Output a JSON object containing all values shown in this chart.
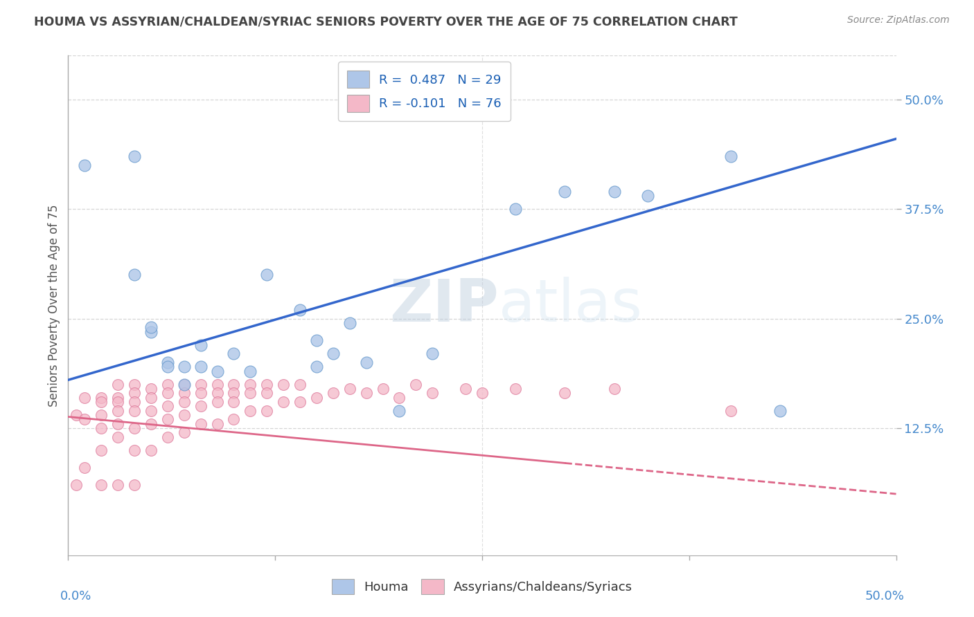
{
  "title": "HOUMA VS ASSYRIAN/CHALDEAN/SYRIAC SENIORS POVERTY OVER THE AGE OF 75 CORRELATION CHART",
  "source": "Source: ZipAtlas.com",
  "ylabel": "Seniors Poverty Over the Age of 75",
  "ytick_labels": [
    "12.5%",
    "25.0%",
    "37.5%",
    "50.0%"
  ],
  "ytick_values": [
    0.125,
    0.25,
    0.375,
    0.5
  ],
  "xlim": [
    0.0,
    0.5
  ],
  "ylim": [
    -0.02,
    0.55
  ],
  "houma_color": "#aec6e8",
  "houma_edge": "#6699cc",
  "assyrian_color": "#f4b8c8",
  "assyrian_edge": "#dd7799",
  "trend_houma_color": "#3366cc",
  "trend_assyrian_color": "#dd6688",
  "R_houma": 0.487,
  "N_houma": 29,
  "R_assyrian": -0.101,
  "N_assyrian": 76,
  "watermark_zip": "ZIP",
  "watermark_atlas": "atlas",
  "legend_label_houma": "Houma",
  "legend_label_assyrian": "Assyrians/Chaldeans/Syriacs",
  "houma_trend_x0": 0.0,
  "houma_trend_y0": 0.18,
  "houma_trend_x1": 0.5,
  "houma_trend_y1": 0.455,
  "assyrian_trend_x0": 0.0,
  "assyrian_trend_y0": 0.138,
  "assyrian_trend_x1": 0.5,
  "assyrian_trend_y1": 0.05,
  "houma_points_x": [
    0.01,
    0.04,
    0.04,
    0.05,
    0.05,
    0.06,
    0.06,
    0.07,
    0.07,
    0.08,
    0.08,
    0.09,
    0.1,
    0.11,
    0.12,
    0.14,
    0.15,
    0.15,
    0.16,
    0.17,
    0.18,
    0.2,
    0.22,
    0.27,
    0.3,
    0.33,
    0.35,
    0.4,
    0.43
  ],
  "houma_points_y": [
    0.425,
    0.435,
    0.3,
    0.235,
    0.24,
    0.2,
    0.195,
    0.195,
    0.175,
    0.195,
    0.22,
    0.19,
    0.21,
    0.19,
    0.3,
    0.26,
    0.225,
    0.195,
    0.21,
    0.245,
    0.2,
    0.145,
    0.21,
    0.375,
    0.395,
    0.395,
    0.39,
    0.435,
    0.145
  ],
  "assyrian_points_x": [
    0.005,
    0.005,
    0.01,
    0.01,
    0.01,
    0.02,
    0.02,
    0.02,
    0.02,
    0.02,
    0.02,
    0.03,
    0.03,
    0.03,
    0.03,
    0.03,
    0.03,
    0.03,
    0.04,
    0.04,
    0.04,
    0.04,
    0.04,
    0.04,
    0.04,
    0.05,
    0.05,
    0.05,
    0.05,
    0.05,
    0.06,
    0.06,
    0.06,
    0.06,
    0.06,
    0.07,
    0.07,
    0.07,
    0.07,
    0.07,
    0.08,
    0.08,
    0.08,
    0.08,
    0.09,
    0.09,
    0.09,
    0.09,
    0.1,
    0.1,
    0.1,
    0.1,
    0.11,
    0.11,
    0.11,
    0.12,
    0.12,
    0.12,
    0.13,
    0.13,
    0.14,
    0.14,
    0.15,
    0.16,
    0.17,
    0.18,
    0.19,
    0.2,
    0.21,
    0.22,
    0.24,
    0.25,
    0.27,
    0.3,
    0.33,
    0.4
  ],
  "assyrian_points_y": [
    0.14,
    0.06,
    0.16,
    0.135,
    0.08,
    0.16,
    0.155,
    0.14,
    0.125,
    0.1,
    0.06,
    0.175,
    0.16,
    0.155,
    0.145,
    0.13,
    0.115,
    0.06,
    0.175,
    0.165,
    0.155,
    0.145,
    0.125,
    0.1,
    0.06,
    0.17,
    0.16,
    0.145,
    0.13,
    0.1,
    0.175,
    0.165,
    0.15,
    0.135,
    0.115,
    0.175,
    0.165,
    0.155,
    0.14,
    0.12,
    0.175,
    0.165,
    0.15,
    0.13,
    0.175,
    0.165,
    0.155,
    0.13,
    0.175,
    0.165,
    0.155,
    0.135,
    0.175,
    0.165,
    0.145,
    0.175,
    0.165,
    0.145,
    0.175,
    0.155,
    0.175,
    0.155,
    0.16,
    0.165,
    0.17,
    0.165,
    0.17,
    0.16,
    0.175,
    0.165,
    0.17,
    0.165,
    0.17,
    0.165,
    0.17,
    0.145
  ],
  "background_color": "#ffffff",
  "grid_color": "#cccccc",
  "title_color": "#444444",
  "axis_label_color": "#555555",
  "tick_color": "#4488cc"
}
